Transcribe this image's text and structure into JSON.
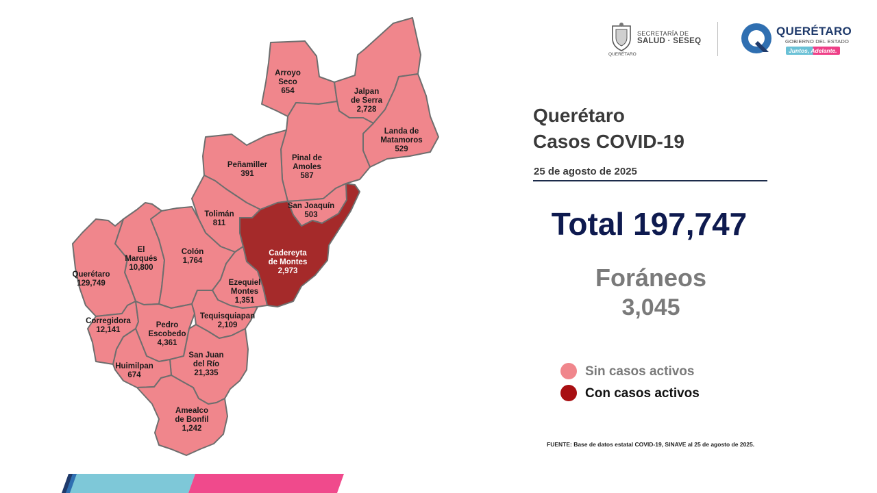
{
  "header": {
    "ssa_logo": {
      "line1": "SECRETARÍA DE",
      "line2": "SALUD · SESEQ",
      "caption": "QUERÉTARO"
    },
    "gov_logo": {
      "name": "QUERÉTARO",
      "subtitle": "GOBIERNO DEL ESTADO",
      "slogan": "Juntos, Adelante."
    }
  },
  "summary": {
    "title_line1": "Querétaro",
    "title_line2": "Casos COVID-19",
    "date": "25 de agosto de 2025",
    "total_text": "Total 197,747",
    "foraneos_label": "Foráneos",
    "foraneos_value": "3,045"
  },
  "colors": {
    "sin_casos": "#f0868c",
    "con_casos": "#a52a2a",
    "border": "#6e6e6e",
    "title_navy": "#0e1a4f"
  },
  "legend": [
    {
      "label": "Sin casos activos",
      "color": "#f0868c"
    },
    {
      "label": "Con casos activos",
      "color": "#a80f12"
    }
  ],
  "source": "FUENTE: Base de datos estatal COVID-19, SINAVE al 25 de agosto de 2025.",
  "municipalities": [
    {
      "key": "arroyo-seco",
      "lines": [
        "Arroyo",
        "Seco",
        "654"
      ],
      "active": false
    },
    {
      "key": "jalpan",
      "lines": [
        "Jalpan",
        "de Serra",
        "2,728"
      ],
      "active": false
    },
    {
      "key": "landa",
      "lines": [
        "Landa de",
        "Matamoros",
        "529"
      ],
      "active": false
    },
    {
      "key": "pinal",
      "lines": [
        "Pinal de",
        "Amoles",
        "587"
      ],
      "active": false
    },
    {
      "key": "penamiller",
      "lines": [
        "Peñamiller",
        "391"
      ],
      "active": false
    },
    {
      "key": "san-joaquin",
      "lines": [
        "San Joaquín",
        "503"
      ],
      "active": false
    },
    {
      "key": "toliman",
      "lines": [
        "Tolimán",
        "811"
      ],
      "active": false
    },
    {
      "key": "cadereyta",
      "lines": [
        "Cadereyta",
        "de Montes",
        "2,973"
      ],
      "active": true
    },
    {
      "key": "el-marques",
      "lines": [
        "El",
        "Marqués",
        "10,800"
      ],
      "active": false
    },
    {
      "key": "colon",
      "lines": [
        "Colón",
        "1,764"
      ],
      "active": false
    },
    {
      "key": "queretaro",
      "lines": [
        "Querétaro",
        "129,749"
      ],
      "active": false
    },
    {
      "key": "ezequiel",
      "lines": [
        "Ezequiel",
        "Montes",
        "1,351"
      ],
      "active": false
    },
    {
      "key": "corregidora",
      "lines": [
        "Corregidora",
        "12,141"
      ],
      "active": false
    },
    {
      "key": "tequisquiapan",
      "lines": [
        "Tequisquiapan",
        "2,109"
      ],
      "active": false
    },
    {
      "key": "pedro-escobedo",
      "lines": [
        "Pedro",
        "Escobedo",
        "4,361"
      ],
      "active": false
    },
    {
      "key": "san-juan",
      "lines": [
        "San Juan",
        "del Río",
        "21,335"
      ],
      "active": false
    },
    {
      "key": "huimilpan",
      "lines": [
        "Huimilpan",
        "674"
      ],
      "active": false
    },
    {
      "key": "amealco",
      "lines": [
        "Amealco",
        "de Bonfil",
        "1,242"
      ],
      "active": false
    }
  ]
}
